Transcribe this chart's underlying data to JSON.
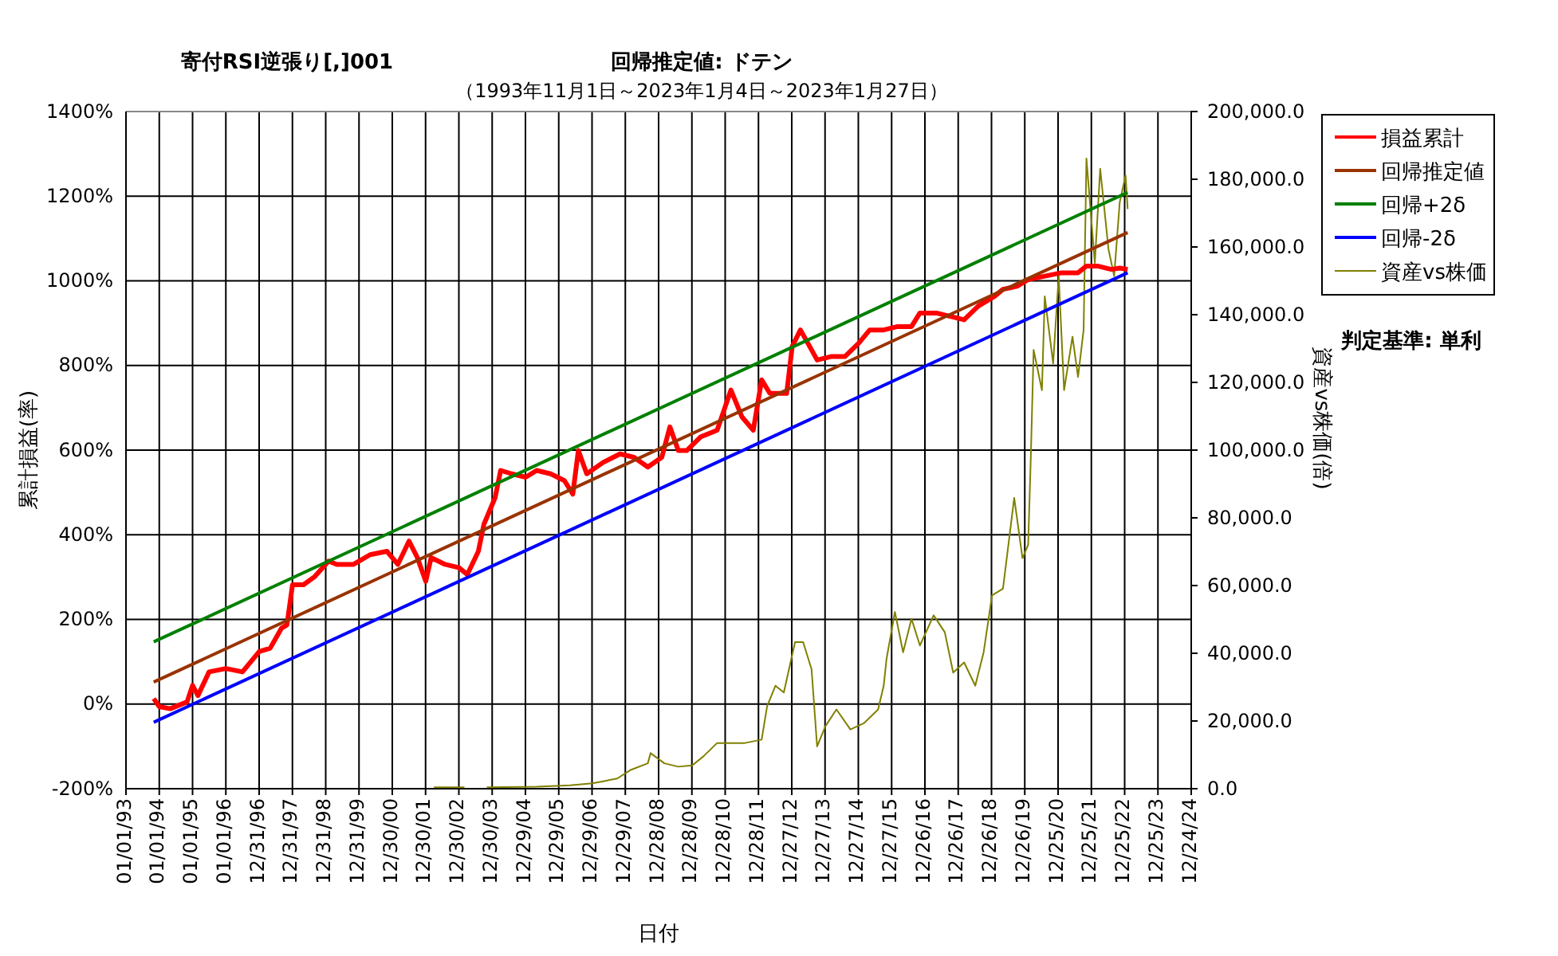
{
  "chart_data": {
    "type": "line",
    "title": "寄付RSI逆張り[,]001",
    "subtitle": "回帰推定値: ドテン",
    "annotations": [
      "（1993年11月1日～2023年1月4日～2023年1月27日）",
      "判定基準: 単利"
    ],
    "xlabel": "日付",
    "ylabel": "累計損益(率)",
    "y2label": "資産vs株価(倍)",
    "xlim": [
      "1993-01-01",
      "2024-12-24"
    ],
    "xticks": [
      {
        "value": "1993-01-01",
        "label": "01/01/93"
      },
      {
        "value": "1994-01-01",
        "label": "01/01/94"
      },
      {
        "value": "1995-01-01",
        "label": "01/01/95"
      },
      {
        "value": "1996-01-01",
        "label": "01/01/96"
      },
      {
        "value": "1996-12-31",
        "label": "12/31/96"
      },
      {
        "value": "1997-12-31",
        "label": "12/31/97"
      },
      {
        "value": "1998-12-31",
        "label": "12/31/98"
      },
      {
        "value": "1999-12-31",
        "label": "12/31/99"
      },
      {
        "value": "2000-12-30",
        "label": "12/30/00"
      },
      {
        "value": "2001-12-30",
        "label": "12/30/01"
      },
      {
        "value": "2002-12-30",
        "label": "12/30/02"
      },
      {
        "value": "2003-12-30",
        "label": "12/30/03"
      },
      {
        "value": "2004-12-29",
        "label": "12/29/04"
      },
      {
        "value": "2005-12-29",
        "label": "12/29/05"
      },
      {
        "value": "2006-12-29",
        "label": "12/29/06"
      },
      {
        "value": "2007-12-29",
        "label": "12/29/07"
      },
      {
        "value": "2008-12-28",
        "label": "12/28/08"
      },
      {
        "value": "2009-12-28",
        "label": "12/28/09"
      },
      {
        "value": "2010-12-28",
        "label": "12/28/10"
      },
      {
        "value": "2011-12-28",
        "label": "12/28/11"
      },
      {
        "value": "2012-12-27",
        "label": "12/27/12"
      },
      {
        "value": "2013-12-27",
        "label": "12/27/13"
      },
      {
        "value": "2014-12-27",
        "label": "12/27/14"
      },
      {
        "value": "2015-12-27",
        "label": "12/27/15"
      },
      {
        "value": "2016-12-26",
        "label": "12/26/16"
      },
      {
        "value": "2017-12-26",
        "label": "12/26/17"
      },
      {
        "value": "2018-12-26",
        "label": "12/26/18"
      },
      {
        "value": "2019-12-26",
        "label": "12/26/19"
      },
      {
        "value": "2020-12-25",
        "label": "12/25/20"
      },
      {
        "value": "2021-12-25",
        "label": "12/25/21"
      },
      {
        "value": "2022-12-25",
        "label": "12/25/22"
      },
      {
        "value": "2023-12-25",
        "label": "12/25/23"
      },
      {
        "value": "2024-12-24",
        "label": "12/24/24"
      }
    ],
    "ylim": [
      -200,
      1400
    ],
    "yticks": [
      {
        "value": -200,
        "label": "-200%"
      },
      {
        "value": 0,
        "label": "0%"
      },
      {
        "value": 200,
        "label": "200%"
      },
      {
        "value": 400,
        "label": "400%"
      },
      {
        "value": 600,
        "label": "600%"
      },
      {
        "value": 800,
        "label": "800%"
      },
      {
        "value": 1000,
        "label": "1000%"
      },
      {
        "value": 1200,
        "label": "1200%"
      },
      {
        "value": 1400,
        "label": "1400%"
      }
    ],
    "y2lim": [
      0,
      200000
    ],
    "y2ticks": [
      {
        "value": 0,
        "label": "0.0"
      },
      {
        "value": 20000,
        "label": "20,000.0"
      },
      {
        "value": 40000,
        "label": "40,000.0"
      },
      {
        "value": 60000,
        "label": "60,000.0"
      },
      {
        "value": 80000,
        "label": "80,000.0"
      },
      {
        "value": 100000,
        "label": "100,000.0"
      },
      {
        "value": 120000,
        "label": "120,000.0"
      },
      {
        "value": 140000,
        "label": "140,000.0"
      },
      {
        "value": 160000,
        "label": "160,000.0"
      },
      {
        "value": 180000,
        "label": "180,000.0"
      },
      {
        "value": 200000,
        "label": "200,000.0"
      }
    ],
    "grid": true,
    "legend": "top right",
    "marker": "none",
    "line_style": "solid",
    "series": [
      {
        "name": "損益累計",
        "color": "#ff0000",
        "x": [
          "1993-11-01",
          "1994-01",
          "1994-05",
          "1994-11",
          "1995-01",
          "1995-03",
          "1995-07",
          "1996-01",
          "1996-07",
          "1997-01",
          "1997-05",
          "1997-09",
          "1997-11",
          "1998-01",
          "1998-05",
          "1998-09",
          "1999-02",
          "1999-05",
          "1999-11",
          "2000-05",
          "2000-11",
          "2001-03",
          "2001-07",
          "2001-10",
          "2002-01",
          "2002-03",
          "2002-08",
          "2003-01",
          "2003-04",
          "2003-08",
          "2003-10",
          "2004-02",
          "2004-04",
          "2004-08",
          "2005-01",
          "2005-05",
          "2005-10",
          "2006-03",
          "2006-06",
          "2006-08",
          "2006-11",
          "2007-05",
          "2007-11",
          "2008-04",
          "2008-09",
          "2009-02",
          "2009-05",
          "2009-08",
          "2009-11",
          "2010-04",
          "2010-10",
          "2011-03",
          "2011-07",
          "2011-11",
          "2012-02",
          "2012-05",
          "2012-11",
          "2013-01",
          "2013-04",
          "2013-08",
          "2013-10",
          "2014-03",
          "2014-08",
          "2015-01",
          "2015-05",
          "2015-10",
          "2016-03",
          "2016-08",
          "2016-11",
          "2017-05",
          "2017-10",
          "2018-03",
          "2018-08",
          "2019-02",
          "2019-05",
          "2019-10",
          "2020-02",
          "2020-08",
          "2021-02",
          "2021-08",
          "2021-11",
          "2022-03",
          "2022-08",
          "2022-11",
          "2023-01-27"
        ],
        "values": [
          13,
          -6,
          -11,
          5,
          44,
          20,
          76,
          84,
          76,
          124,
          132,
          179,
          187,
          282,
          282,
          301,
          338,
          330,
          330,
          353,
          361,
          330,
          385,
          346,
          290,
          346,
          330,
          322,
          306,
          361,
          425,
          488,
          552,
          544,
          536,
          552,
          544,
          528,
          496,
          599,
          544,
          571,
          591,
          583,
          560,
          583,
          655,
          599,
          599,
          631,
          647,
          742,
          678,
          647,
          766,
          734,
          734,
          845,
          884,
          837,
          813,
          821,
          821,
          853,
          884,
          884,
          892,
          892,
          924,
          924,
          916,
          908,
          940,
          964,
          980,
          987,
          1003,
          1011,
          1019,
          1019,
          1035,
          1035,
          1027,
          1030,
          1027
        ]
      },
      {
        "name": "回帰推定値",
        "color": "#993300",
        "x": [
          "1993-11-01",
          "2023-01-27"
        ],
        "values": [
          52,
          1114
        ]
      },
      {
        "name": "回帰+2δ",
        "color": "#008000",
        "x": [
          "1993-11-01",
          "2023-01-27"
        ],
        "values": [
          147,
          1209
        ]
      },
      {
        "name": "回帰-2δ",
        "color": "#0000ff",
        "x": [
          "1993-11-01",
          "2023-01-27"
        ],
        "values": [
          -43,
          1019
        ]
      },
      {
        "name": "資産vs株価",
        "color": "#808000",
        "axis": "y2",
        "x": [
          "2002-04",
          "2003-03",
          "2003-06",
          "2003-11",
          "2005-05",
          "2006-05",
          "2007-01",
          "2007-05",
          "2007-10",
          "2008-03",
          "2008-09",
          "2008-10",
          "2009-03",
          "2009-08",
          "2010-01",
          "2010-05",
          "2010-10",
          "2011-03",
          "2011-08",
          "2012-02",
          "2012-04",
          "2012-07",
          "2012-10",
          "2013-02",
          "2013-05",
          "2013-08",
          "2013-10",
          "2014-01",
          "2014-05",
          "2014-10",
          "2015-03",
          "2015-08",
          "2015-10",
          "2015-11",
          "2016-02",
          "2016-05",
          "2016-08",
          "2016-11",
          "2017-04",
          "2017-08",
          "2017-11",
          "2018-03",
          "2018-07",
          "2018-10",
          "2019-01",
          "2019-05",
          "2019-09",
          "2019-12",
          "2020-02",
          "2020-03",
          "2020-04",
          "2020-07",
          "2020-08",
          "2020-11",
          "2021-01",
          "2021-03",
          "2021-06",
          "2021-08",
          "2021-10",
          "2021-11",
          "2022-02",
          "2022-04",
          "2022-07",
          "2022-09",
          "2022-11",
          "2023-01-04",
          "2023-01-27"
        ],
        "values": [
          400,
          400,
          null,
          400,
          600,
          1000,
          1600,
          2200,
          3000,
          5600,
          7500,
          10500,
          7500,
          6500,
          6900,
          9500,
          13500,
          13500,
          13500,
          14500,
          24400,
          30400,
          28400,
          43300,
          43300,
          35300,
          12500,
          18500,
          23400,
          17500,
          19400,
          23400,
          30400,
          38300,
          52200,
          40300,
          50200,
          42300,
          51200,
          46200,
          34300,
          37300,
          30400,
          40300,
          57100,
          59100,
          85900,
          68100,
          72000,
          97800,
          129600,
          117700,
          145400,
          125600,
          151400,
          117700,
          133500,
          121600,
          135500,
          186100,
          155300,
          183100,
          159300,
          151400,
          173200,
          181100,
          171200
        ]
      }
    ]
  }
}
